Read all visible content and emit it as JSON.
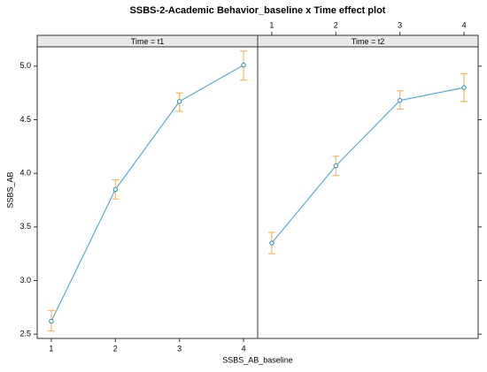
{
  "chart_data": {
    "type": "line",
    "title": "SSBS-2-Academic Behavior_baseline x Time effect plot",
    "x_label": "SSBS_AB_baseline",
    "y_label": "SSBS_AB",
    "x": [
      1,
      2,
      3,
      4
    ],
    "xlim": [
      0.78,
      4.22
    ],
    "xticks": [
      1,
      2,
      3,
      4
    ],
    "ylim": [
      2.46,
      5.18
    ],
    "yticks": [
      2.5,
      {
        "value": 3,
        "label": "3.0"
      },
      3.5,
      {
        "value": 4,
        "label": "4.0"
      },
      4.5,
      {
        "value": 5,
        "label": "5.0"
      }
    ],
    "color": "#5aaad8",
    "error_color": "#f7b860",
    "panels": [
      {
        "strip": "Time = t1",
        "values": [
          2.62,
          3.85,
          4.67,
          5.01
        ],
        "lower": [
          2.53,
          3.76,
          4.58,
          4.87
        ],
        "upper": [
          2.72,
          3.94,
          4.75,
          5.14
        ]
      },
      {
        "strip": "Time = t2",
        "values": [
          3.35,
          4.07,
          4.68,
          4.8
        ],
        "lower": [
          3.25,
          3.98,
          4.6,
          4.67
        ],
        "upper": [
          3.45,
          4.16,
          4.77,
          4.93
        ]
      }
    ]
  }
}
